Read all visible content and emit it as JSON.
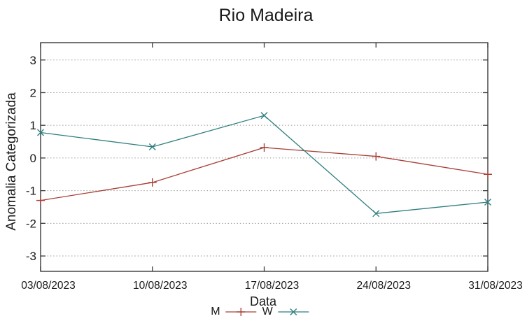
{
  "chart_data": {
    "type": "line",
    "title": "Rio Madeira",
    "xlabel": "Data",
    "ylabel": "Anomalia Categorizada",
    "categories": [
      "03/08/2023",
      "10/08/2023",
      "17/08/2023",
      "24/08/2023",
      "31/08/2023"
    ],
    "series": [
      {
        "name": "M",
        "marker": "plus-marker",
        "color": "#a94038",
        "values": [
          -1.3,
          -0.75,
          0.32,
          0.05,
          -0.5
        ]
      },
      {
        "name": "W",
        "marker": "x-marker",
        "color": "#2e7e7e",
        "values": [
          0.78,
          0.34,
          1.3,
          -1.7,
          -1.35
        ]
      }
    ],
    "ylim": [
      -3.47,
      3.53
    ],
    "yticks": [
      -3,
      -2,
      -1,
      0,
      1,
      2,
      3
    ],
    "grid": {
      "horizontal": true,
      "style": "dotted",
      "color": "#999999"
    },
    "legend": {
      "position": "bottom-center",
      "entries": [
        "M",
        "W"
      ]
    },
    "axis_color": "#3a3a3a",
    "text_color": "#1a1a1a",
    "background": "#ffffff"
  }
}
